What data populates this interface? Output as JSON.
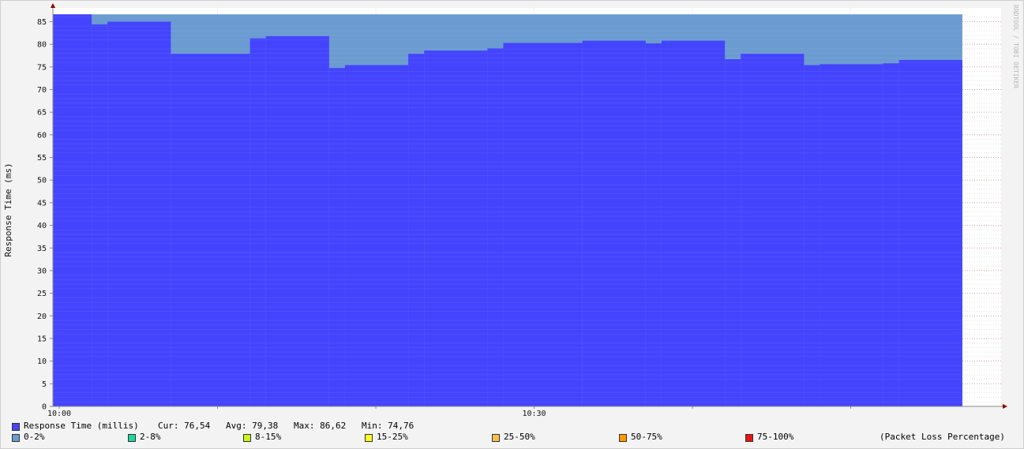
{
  "chart_data": {
    "type": "area",
    "ylabel": "Response Time (ms)",
    "ylim": [
      0,
      87
    ],
    "yticks": [
      0,
      5,
      10,
      15,
      20,
      25,
      30,
      35,
      40,
      45,
      50,
      55,
      60,
      65,
      70,
      75,
      80,
      85
    ],
    "x_tick_labels": [
      {
        "label": "10:00",
        "t": 0
      },
      {
        "label": "10:30",
        "t": 30
      }
    ],
    "x_range_minutes": [
      -0.4,
      59.5
    ],
    "grid": true,
    "watermark": "RRDTOOL / TOBI OETIKER",
    "series": [
      {
        "name": "Response Time (millis)",
        "color": "#4444ff",
        "segments": [
          {
            "t0": -0.4,
            "t1": 2.05,
            "value": 86.62
          },
          {
            "t0": 2.05,
            "t1": 3.05,
            "value": 84.4
          },
          {
            "t0": 3.05,
            "t1": 7.05,
            "value": 85.0
          },
          {
            "t0": 7.05,
            "t1": 12.05,
            "value": 77.9
          },
          {
            "t0": 12.05,
            "t1": 13.05,
            "value": 81.3
          },
          {
            "t0": 13.05,
            "t1": 17.05,
            "value": 81.8
          },
          {
            "t0": 17.05,
            "t1": 18.05,
            "value": 74.76
          },
          {
            "t0": 18.05,
            "t1": 22.05,
            "value": 75.4
          },
          {
            "t0": 22.05,
            "t1": 23.05,
            "value": 77.9
          },
          {
            "t0": 23.05,
            "t1": 27.05,
            "value": 78.6
          },
          {
            "t0": 27.05,
            "t1": 28.05,
            "value": 79.1
          },
          {
            "t0": 28.05,
            "t1": 33.05,
            "value": 80.3
          },
          {
            "t0": 33.05,
            "t1": 37.05,
            "value": 80.8
          },
          {
            "t0": 37.05,
            "t1": 38.05,
            "value": 80.2
          },
          {
            "t0": 38.05,
            "t1": 42.05,
            "value": 80.8
          },
          {
            "t0": 42.05,
            "t1": 43.05,
            "value": 76.7
          },
          {
            "t0": 43.05,
            "t1": 47.05,
            "value": 77.9
          },
          {
            "t0": 47.05,
            "t1": 48.05,
            "value": 75.4
          },
          {
            "t0": 48.05,
            "t1": 52.05,
            "value": 75.6
          },
          {
            "t0": 52.05,
            "t1": 53.05,
            "value": 75.8
          },
          {
            "t0": 53.05,
            "t1": 57.05,
            "value": 76.54
          }
        ]
      }
    ],
    "loss_band": {
      "top_value": 86.62,
      "t0": -0.4,
      "t1": 57.05,
      "color": "#6b9bd0"
    }
  },
  "legend": {
    "response": {
      "label": "Response Time (millis)",
      "color": "#4444ff",
      "cur": "Cur: 76,54",
      "avg": "Avg: 79,38",
      "max": "Max: 86,62",
      "min": "Min: 74,76"
    },
    "loss_items": [
      {
        "label": "0-2%",
        "color": "#6b9bd0"
      },
      {
        "label": "2-8%",
        "color": "#1ed6a0"
      },
      {
        "label": "8-15%",
        "color": "#c8f51e"
      },
      {
        "label": "15-25%",
        "color": "#ffff22"
      },
      {
        "label": "25-50%",
        "color": "#f5c050"
      },
      {
        "label": "50-75%",
        "color": "#ff9900"
      },
      {
        "label": "75-100%",
        "color": "#ee1111"
      }
    ],
    "loss_caption": "(Packet Loss Percentage)"
  }
}
